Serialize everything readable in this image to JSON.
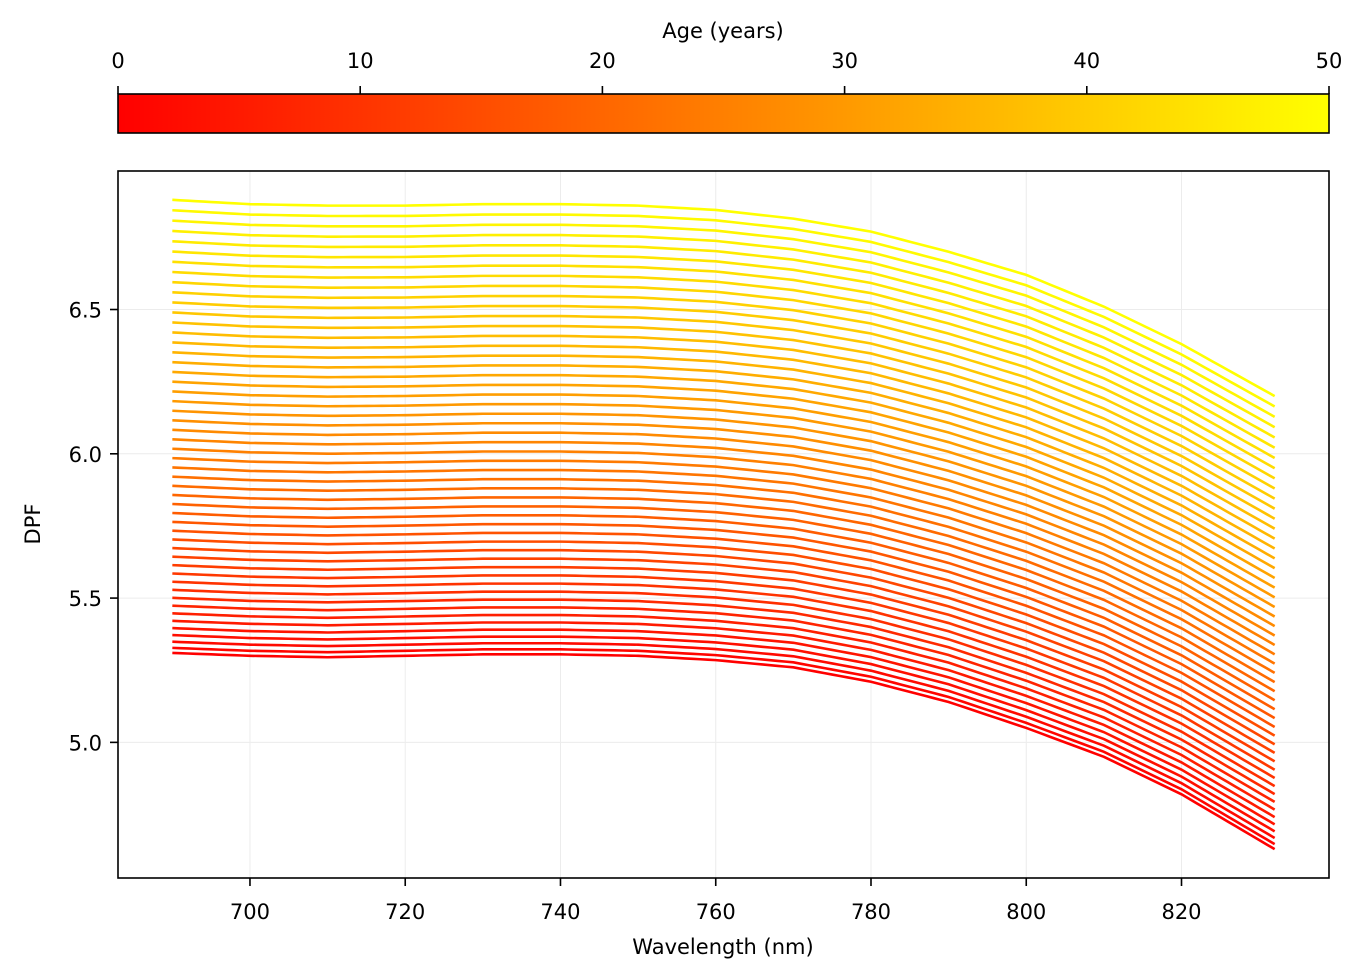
{
  "chart_data": {
    "type": "line",
    "title": "",
    "xlabel": "Wavelength (nm)",
    "ylabel": "DPF",
    "xlim": [
      683,
      839
    ],
    "ylim": [
      4.53,
      6.98
    ],
    "xticks": [
      700,
      720,
      740,
      760,
      780,
      800,
      820
    ],
    "xtick_labels": [
      "700",
      "720",
      "740",
      "760",
      "780",
      "800",
      "820"
    ],
    "yticks": [
      5.0,
      5.5,
      6.0,
      6.5
    ],
    "ytick_labels": [
      "5.0",
      "5.5",
      "6.0",
      "6.5"
    ],
    "grid": true,
    "wavelength_range": [
      690,
      832
    ],
    "series_description": "one DPF curve per age from 0 to 50 years (integer steps), colored by age",
    "age_range": [
      0,
      50
    ],
    "age_step": 1,
    "dpf_curve": {
      "x": [
        690,
        700,
        710,
        720,
        730,
        740,
        750,
        760,
        770,
        780,
        790,
        800,
        810,
        820,
        832
      ],
      "dpf_age_0": [
        5.31,
        5.3,
        5.295,
        5.3,
        5.305,
        5.305,
        5.3,
        5.285,
        5.26,
        5.21,
        5.14,
        5.05,
        4.95,
        4.82,
        4.63
      ],
      "dpf_age_50": [
        6.88,
        6.865,
        6.86,
        6.86,
        6.865,
        6.865,
        6.86,
        6.845,
        6.815,
        6.77,
        6.7,
        6.62,
        6.51,
        6.38,
        6.2
      ]
    },
    "colorbar": {
      "label": "Age (years)",
      "range": [
        0,
        50
      ],
      "ticks": [
        0,
        10,
        20,
        30,
        40,
        50
      ],
      "tick_labels": [
        "0",
        "10",
        "20",
        "30",
        "40",
        "50"
      ],
      "colormap": "autumn",
      "color_low": "#ff0000",
      "color_high": "#ffff00"
    }
  }
}
